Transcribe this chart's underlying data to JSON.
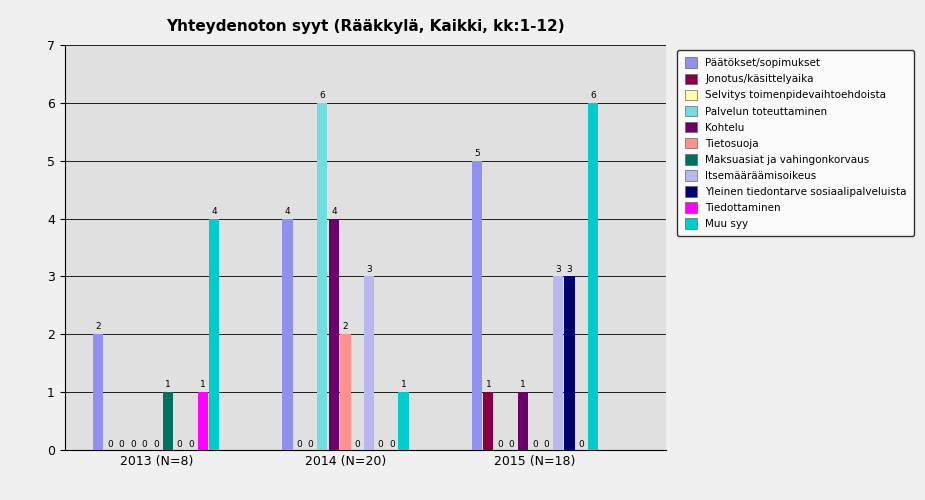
{
  "title": "Yhteydenoton syyt (Rääkkylä, Kaikki, kk:1-12)",
  "years": [
    "2013 (N=8)",
    "2014 (N=20)",
    "2015 (N=18)"
  ],
  "categories": [
    "Päätökset/sopimukset",
    "Jonotus/käsittelyaika",
    "Selvitys toimenpidevaihtoehdoista",
    "Palvelun toteuttaminen",
    "Kohtelu",
    "Tietosuoja",
    "Maksuasiat ja vahingonkorvaus",
    "Itsemääräämisoikeus",
    "Yleinen tiedontarve sosiaalipalveluista",
    "Tiedottaminen",
    "Muu syy"
  ],
  "colors": [
    "#9090EE",
    "#880044",
    "#FFFFAA",
    "#70DEDE",
    "#6B006B",
    "#FF9090",
    "#007060",
    "#B8B8EE",
    "#000070",
    "#FF00FF",
    "#00CCCC"
  ],
  "data": {
    "2013 (N=8)": [
      2,
      0,
      0,
      0,
      0,
      0,
      1,
      0,
      0,
      1,
      4
    ],
    "2014 (N=20)": [
      4,
      0,
      0,
      6,
      4,
      2,
      0,
      3,
      0,
      0,
      1
    ],
    "2015 (N=18)": [
      5,
      1,
      0,
      0,
      1,
      0,
      0,
      3,
      3,
      0,
      6
    ]
  },
  "ylim": [
    0,
    7
  ],
  "yticks": [
    0,
    1,
    2,
    3,
    4,
    5,
    6,
    7
  ],
  "fig_bg_color": "#F0F0F0",
  "plot_bg_color": "#E0E0E0"
}
